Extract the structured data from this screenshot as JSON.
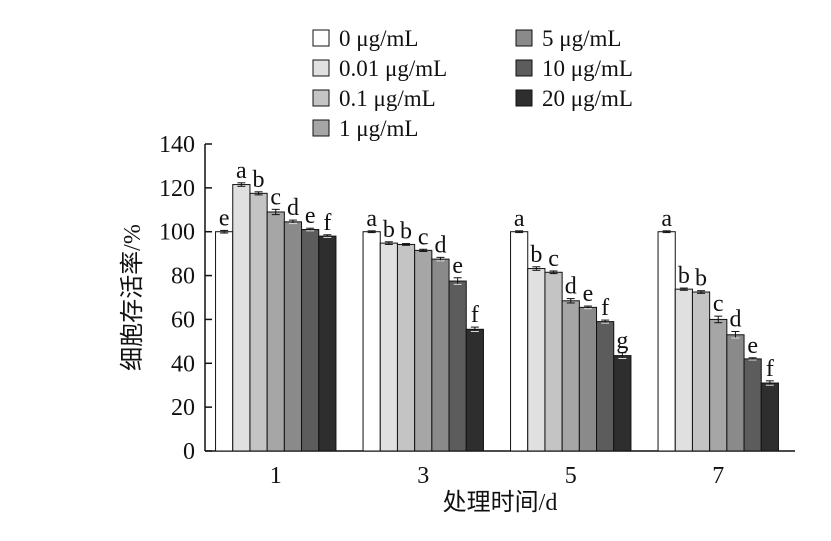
{
  "chart_data": {
    "type": "bar",
    "title": "",
    "xlabel": "处理时间/d",
    "ylabel": "细胞存活率/%",
    "ylim": [
      0,
      140
    ],
    "yticks": [
      0,
      20,
      40,
      60,
      80,
      100,
      120,
      140
    ],
    "categories": [
      "1",
      "3",
      "5",
      "7"
    ],
    "grid": false,
    "legend_position": "top",
    "series": [
      {
        "name": "0 μg/mL",
        "color": "#ffffff",
        "values": [
          100.0,
          100.0,
          100.0,
          100.0
        ],
        "errors": [
          0.6,
          0.4,
          0.4,
          0.4
        ],
        "labels": [
          "e",
          "a",
          "a",
          "a"
        ]
      },
      {
        "name": "0.01 μg/mL",
        "color": "#e0e0e0",
        "values": [
          121.5,
          94.8,
          83.2,
          73.8
        ],
        "errors": [
          0.8,
          0.6,
          0.8,
          0.5
        ],
        "labels": [
          "a",
          "b",
          "b",
          "b"
        ]
      },
      {
        "name": "0.1 μg/mL",
        "color": "#c4c4c4",
        "values": [
          117.5,
          94.2,
          81.5,
          72.5
        ],
        "errors": [
          0.7,
          0.4,
          0.6,
          0.6
        ],
        "labels": [
          "b",
          "b",
          "c",
          "b"
        ]
      },
      {
        "name": "1 μg/mL",
        "color": "#a6a6a6",
        "values": [
          109.0,
          91.5,
          68.5,
          60.0
        ],
        "errors": [
          1.2,
          0.5,
          1.0,
          1.5
        ],
        "labels": [
          "c",
          "c",
          "d",
          "c"
        ]
      },
      {
        "name": "5 μg/mL",
        "color": "#8a8a8a",
        "values": [
          104.5,
          87.5,
          65.5,
          53.0
        ],
        "errors": [
          0.8,
          0.8,
          0.6,
          1.5
        ],
        "labels": [
          "d",
          "d",
          "e",
          "d"
        ]
      },
      {
        "name": "10 μg/mL",
        "color": "#5c5c5c",
        "values": [
          101.0,
          77.5,
          59.0,
          42.0
        ],
        "errors": [
          0.6,
          1.5,
          0.7,
          0.5
        ],
        "labels": [
          "e",
          "e",
          "f",
          "e"
        ]
      },
      {
        "name": "20 μg/mL",
        "color": "#2e2e2e",
        "values": [
          98.0,
          55.5,
          43.5,
          31.0
        ],
        "errors": [
          0.6,
          1.0,
          1.3,
          1.0
        ],
        "labels": [
          "f",
          "f",
          "g",
          "f"
        ]
      }
    ]
  }
}
